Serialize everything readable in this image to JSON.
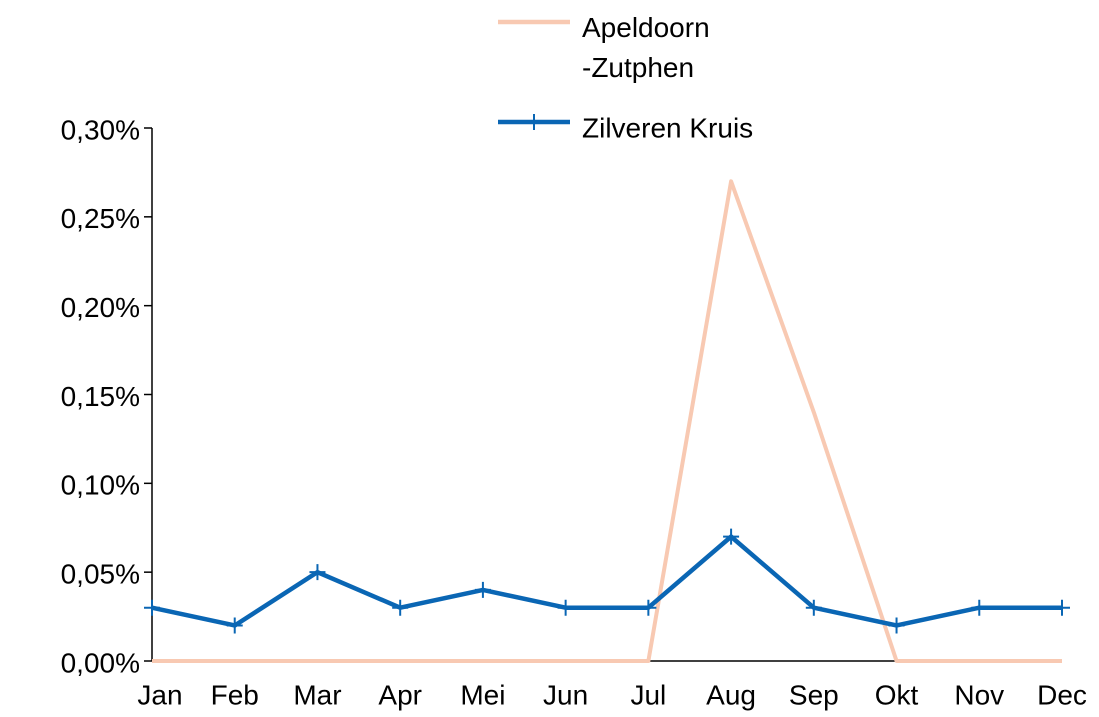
{
  "chart_data": {
    "type": "line",
    "categories": [
      "Jan",
      "Feb",
      "Mar",
      "Apr",
      "Mei",
      "Jun",
      "Jul",
      "Aug",
      "Sep",
      "Okt",
      "Nov",
      "Dec"
    ],
    "series": [
      {
        "name": "Apeldoorn -Zutphen",
        "color": "#f8c9b2",
        "marker": false,
        "values": [
          0,
          0,
          0,
          0,
          0,
          0,
          0,
          0.27,
          0.14,
          0,
          0,
          0
        ]
      },
      {
        "name": "Zilveren Kruis",
        "color": "#0a66b4",
        "marker": true,
        "values": [
          0.03,
          0.02,
          0.05,
          0.03,
          0.04,
          0.03,
          0.03,
          0.07,
          0.03,
          0.02,
          0.03,
          0.03
        ]
      }
    ],
    "ylim": [
      0,
      0.3
    ],
    "yticks": [
      {
        "value": 0,
        "label": "0,00%"
      },
      {
        "value": 0.05,
        "label": "0,05%"
      },
      {
        "value": 0.1,
        "label": "0,10%"
      },
      {
        "value": 0.15,
        "label": "0,15%"
      },
      {
        "value": 0.2,
        "label": "0,20%"
      },
      {
        "value": 0.25,
        "label": "0,25%"
      },
      {
        "value": 0.3,
        "label": "0,30%"
      }
    ],
    "grid": false,
    "legend": "top"
  }
}
